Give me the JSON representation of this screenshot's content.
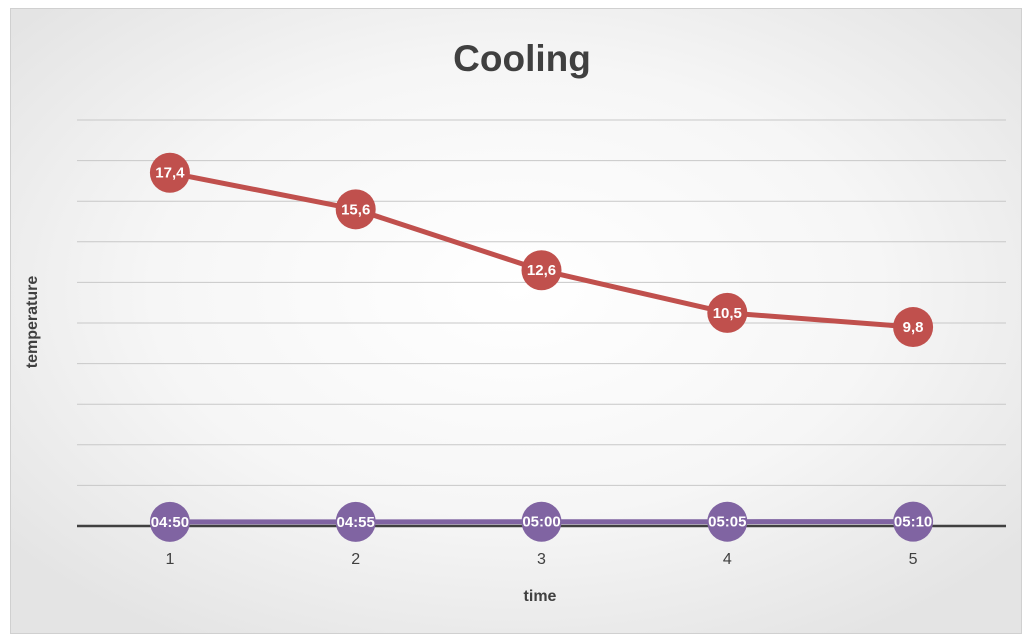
{
  "chart_data": {
    "type": "line",
    "title": "Cooling",
    "x_label": "time",
    "y_label": "temperature",
    "categories": [
      1,
      2,
      3,
      4,
      5
    ],
    "series": [
      {
        "color": "#c0504d",
        "values": [
          17.4,
          15.6,
          12.6,
          10.5,
          9.8
        ],
        "value_labels": [
          "17,4",
          "15,6",
          "12,6",
          "10,5",
          "9,8"
        ]
      },
      {
        "color": "#8064a2",
        "values": [
          0.2014,
          0.2049,
          0.2083,
          0.2118,
          0.2153
        ],
        "value_labels": [
          "04:50",
          "04:55",
          "05:00",
          "05:05",
          "05:10"
        ]
      }
    ],
    "ylim": [
      0,
      20
    ],
    "yticks": [
      0,
      2,
      4,
      6,
      8,
      10,
      12,
      14,
      16,
      18,
      20
    ],
    "grid": true
  }
}
